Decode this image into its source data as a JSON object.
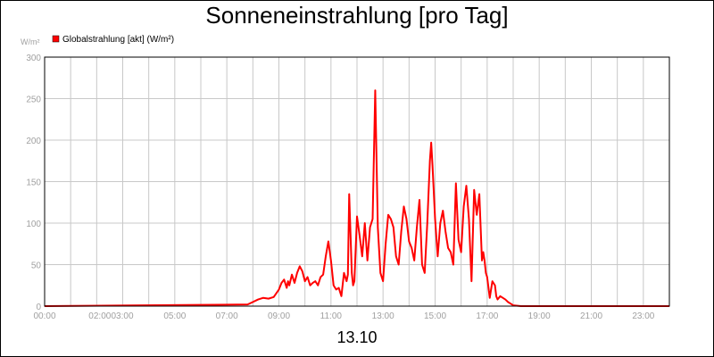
{
  "chart_data": {
    "type": "line",
    "title": "Sonneneinstrahlung [pro Tag]",
    "xlabel": "13.10",
    "ylabel": "W/m²",
    "xlim": [
      0,
      24
    ],
    "ylim": [
      0,
      300
    ],
    "grid": true,
    "legend_position": "top-left",
    "x_ticks": [
      {
        "x": 0,
        "label": "00:00"
      },
      {
        "x": 2,
        "label": "02:00"
      },
      {
        "x": 3,
        "label": "03:00"
      },
      {
        "x": 5,
        "label": "05:00"
      },
      {
        "x": 7,
        "label": "07:00"
      },
      {
        "x": 9,
        "label": "09:00"
      },
      {
        "x": 11,
        "label": "11:00"
      },
      {
        "x": 13,
        "label": "13:00"
      },
      {
        "x": 15,
        "label": "15:00"
      },
      {
        "x": 17,
        "label": "17:00"
      },
      {
        "x": 19,
        "label": "19:00"
      },
      {
        "x": 21,
        "label": "21:00"
      },
      {
        "x": 23,
        "label": "23:00"
      }
    ],
    "x_grid": [
      1,
      2,
      3,
      4,
      5,
      6,
      7,
      8,
      9,
      10,
      11,
      12,
      13,
      14,
      15,
      16,
      17,
      18,
      19,
      20,
      21,
      22,
      23
    ],
    "y_ticks": [
      0,
      50,
      100,
      150,
      200,
      250,
      300
    ],
    "series": [
      {
        "name": "Globalstrahlung [akt] (W/m²)",
        "color": "#ff0000",
        "x": [
          0,
          7.8,
          8.0,
          8.2,
          8.4,
          8.6,
          8.8,
          9.0,
          9.1,
          9.2,
          9.3,
          9.35,
          9.4,
          9.5,
          9.6,
          9.7,
          9.8,
          9.9,
          10.0,
          10.1,
          10.2,
          10.3,
          10.4,
          10.5,
          10.6,
          10.7,
          10.8,
          10.9,
          11.0,
          11.1,
          11.2,
          11.3,
          11.4,
          11.5,
          11.6,
          11.65,
          11.7,
          11.8,
          11.85,
          11.9,
          12.0,
          12.1,
          12.2,
          12.3,
          12.4,
          12.5,
          12.55,
          12.6,
          12.7,
          12.8,
          12.9,
          13.0,
          13.1,
          13.2,
          13.3,
          13.4,
          13.5,
          13.6,
          13.7,
          13.8,
          13.9,
          14.0,
          14.1,
          14.2,
          14.3,
          14.4,
          14.5,
          14.6,
          14.7,
          14.8,
          14.85,
          14.9,
          15.0,
          15.1,
          15.2,
          15.3,
          15.4,
          15.5,
          15.6,
          15.7,
          15.8,
          15.9,
          16.0,
          16.1,
          16.2,
          16.3,
          16.4,
          16.5,
          16.6,
          16.7,
          16.8,
          16.85,
          16.9,
          16.95,
          17.0,
          17.1,
          17.2,
          17.3,
          17.35,
          17.4,
          17.5,
          17.6,
          17.7,
          17.8,
          17.9,
          18.0,
          18.3,
          18.6,
          24
        ],
        "values": [
          0,
          2,
          5,
          8,
          10,
          9,
          11,
          20,
          28,
          32,
          22,
          30,
          25,
          38,
          28,
          40,
          48,
          42,
          30,
          35,
          25,
          28,
          30,
          25,
          35,
          38,
          60,
          78,
          55,
          25,
          20,
          22,
          12,
          40,
          30,
          38,
          135,
          40,
          25,
          30,
          108,
          85,
          60,
          100,
          55,
          95,
          100,
          105,
          260,
          95,
          40,
          30,
          75,
          110,
          105,
          95,
          60,
          50,
          90,
          120,
          105,
          78,
          70,
          55,
          95,
          128,
          50,
          40,
          100,
          175,
          197,
          170,
          105,
          60,
          100,
          115,
          90,
          70,
          65,
          50,
          148,
          80,
          65,
          120,
          145,
          105,
          30,
          140,
          110,
          135,
          55,
          65,
          55,
          40,
          35,
          10,
          30,
          25,
          12,
          8,
          12,
          10,
          8,
          5,
          3,
          1,
          0,
          0,
          0
        ]
      }
    ]
  }
}
